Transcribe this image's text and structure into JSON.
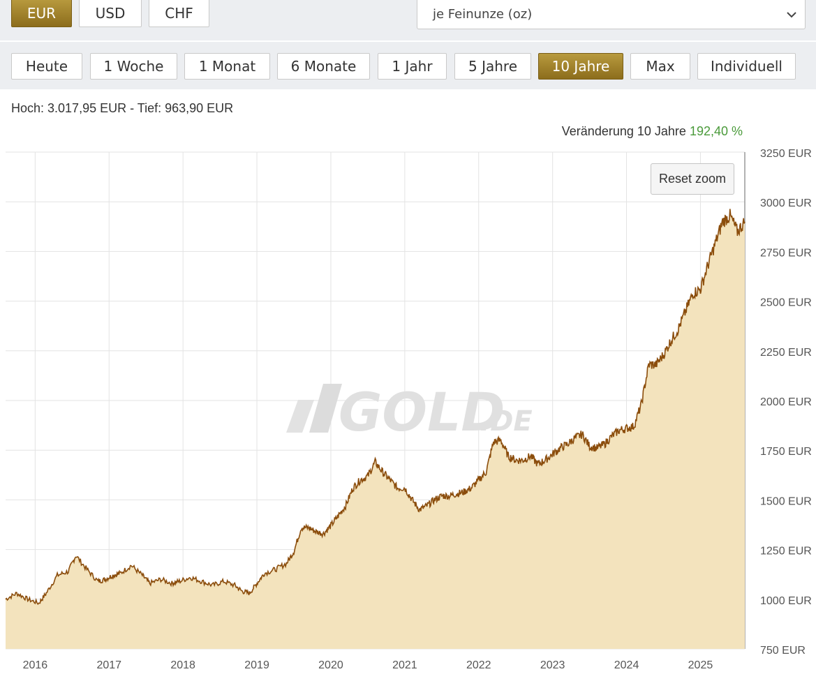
{
  "currency_tabs": [
    {
      "label": "EUR",
      "active": true
    },
    {
      "label": "USD",
      "active": false
    },
    {
      "label": "CHF",
      "active": false
    }
  ],
  "unit_select": {
    "value": "je Feinunze (oz)"
  },
  "range_tabs": [
    {
      "label": "Heute",
      "active": false
    },
    {
      "label": "1 Woche",
      "active": false
    },
    {
      "label": "1 Monat",
      "active": false
    },
    {
      "label": "6 Monate",
      "active": false
    },
    {
      "label": "1 Jahr",
      "active": false
    },
    {
      "label": "5 Jahre",
      "active": false
    },
    {
      "label": "10 Jahre",
      "active": true
    },
    {
      "label": "Max",
      "active": false
    },
    {
      "label": "Individuell",
      "active": false
    }
  ],
  "stats": {
    "high_low": "Hoch: 3.017,95 EUR - Tief: 963,90 EUR",
    "change_label": "Veränderung 10 Jahre",
    "change_value": "192,40 %"
  },
  "reset_zoom": "Reset zoom",
  "watermark": "GOLD.DE",
  "colors": {
    "accent": "#9c7d28",
    "line": "#8b4d0c",
    "area": "#f3e3bd",
    "positive": "#4a9a3a"
  },
  "chart_data": {
    "type": "area",
    "ylim": [
      750,
      3250
    ],
    "y_ticks": [
      750,
      1000,
      1250,
      1500,
      1750,
      2000,
      2250,
      2500,
      2750,
      3000,
      3250
    ],
    "y_unit": "EUR",
    "x_ticks": [
      "2016",
      "2017",
      "2018",
      "2019",
      "2020",
      "2021",
      "2022",
      "2023",
      "2024",
      "2025"
    ],
    "grid": true,
    "series": [
      {
        "x": [
          2015.6,
          2015.75,
          2015.9,
          2016.05,
          2016.15,
          2016.3,
          2016.45,
          2016.55,
          2016.7,
          2016.85,
          2016.95,
          2017.05,
          2017.15,
          2017.3,
          2017.45,
          2017.55,
          2017.7,
          2017.85,
          2017.95,
          2018.1,
          2018.25,
          2018.4,
          2018.55,
          2018.7,
          2018.8,
          2018.9,
          2019.0,
          2019.1,
          2019.25,
          2019.4,
          2019.5,
          2019.6,
          2019.7,
          2019.8,
          2019.9,
          2020.0,
          2020.1,
          2020.2,
          2020.3,
          2020.4,
          2020.5,
          2020.6,
          2020.7,
          2020.8,
          2020.9,
          2021.0,
          2021.1,
          2021.2,
          2021.3,
          2021.4,
          2021.5,
          2021.6,
          2021.7,
          2021.8,
          2021.9,
          2022.0,
          2022.1,
          2022.2,
          2022.3,
          2022.4,
          2022.5,
          2022.6,
          2022.7,
          2022.8,
          2022.9,
          2023.0,
          2023.1,
          2023.2,
          2023.3,
          2023.4,
          2023.5,
          2023.6,
          2023.7,
          2023.8,
          2023.9,
          2024.0,
          2024.1,
          2024.2,
          2024.3,
          2024.4,
          2024.5,
          2024.6,
          2024.7,
          2024.8,
          2024.9,
          2025.0,
          2025.1,
          2025.2,
          2025.3,
          2025.4,
          2025.5,
          2025.6
        ],
        "values": [
          1000,
          1030,
          1000,
          980,
          1030,
          1120,
          1140,
          1220,
          1150,
          1090,
          1100,
          1120,
          1130,
          1170,
          1120,
          1080,
          1100,
          1080,
          1090,
          1110,
          1090,
          1070,
          1090,
          1070,
          1040,
          1030,
          1080,
          1130,
          1150,
          1180,
          1240,
          1360,
          1360,
          1340,
          1330,
          1370,
          1420,
          1470,
          1560,
          1600,
          1620,
          1690,
          1640,
          1600,
          1560,
          1560,
          1500,
          1450,
          1470,
          1500,
          1520,
          1520,
          1530,
          1540,
          1560,
          1600,
          1640,
          1790,
          1800,
          1720,
          1700,
          1700,
          1720,
          1680,
          1700,
          1730,
          1760,
          1780,
          1810,
          1830,
          1770,
          1760,
          1780,
          1820,
          1850,
          1860,
          1870,
          1980,
          2180,
          2180,
          2230,
          2300,
          2360,
          2450,
          2540,
          2560,
          2680,
          2790,
          2900,
          2930,
          2850,
          2900
        ]
      }
    ]
  }
}
